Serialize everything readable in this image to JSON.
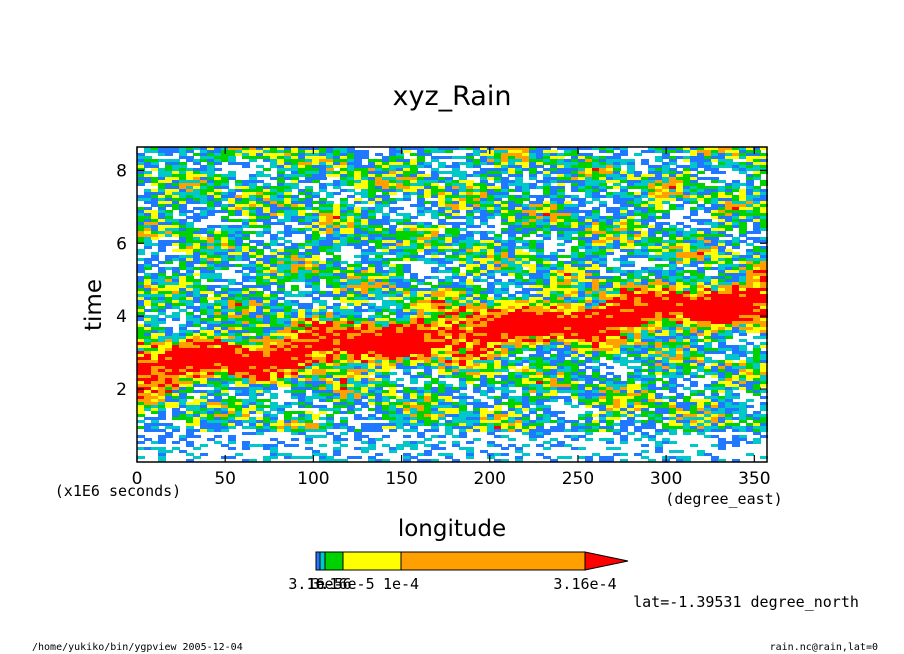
{
  "chart_data": {
    "type": "heatmap",
    "title": "xyz_Rain",
    "xlabel": "longitude",
    "ylabel": "time",
    "x_units": "(degree_east)",
    "y_units": "(x1E6 seconds)",
    "xlim": [
      0,
      357.19
    ],
    "ylim": [
      0,
      8.64
    ],
    "x_ticks": [
      0,
      50,
      100,
      150,
      200,
      250,
      300,
      350
    ],
    "y_ticks": [
      2,
      4,
      6,
      8
    ],
    "grid": false,
    "colorbar": {
      "levels": [
        3.16e-06,
        1e-05,
        3.16e-05,
        0.0001,
        0.000316
      ],
      "colors": [
        "#1f78ff",
        "#00c8c8",
        "#00d200",
        "#ffff00",
        "#ff9f00",
        "#ff0000"
      ],
      "tick_labels": [
        "3.16e-6",
        "1e-5",
        "3.16e-5",
        "1e-4",
        "3.16e-4"
      ],
      "extend": "max"
    },
    "annotation": "lat=-1.39531 degree_north"
  },
  "footer": {
    "left": "/home/yukiko/bin/ygpview  2005-12-04",
    "right": "rain.nc@rain,lat=0"
  }
}
